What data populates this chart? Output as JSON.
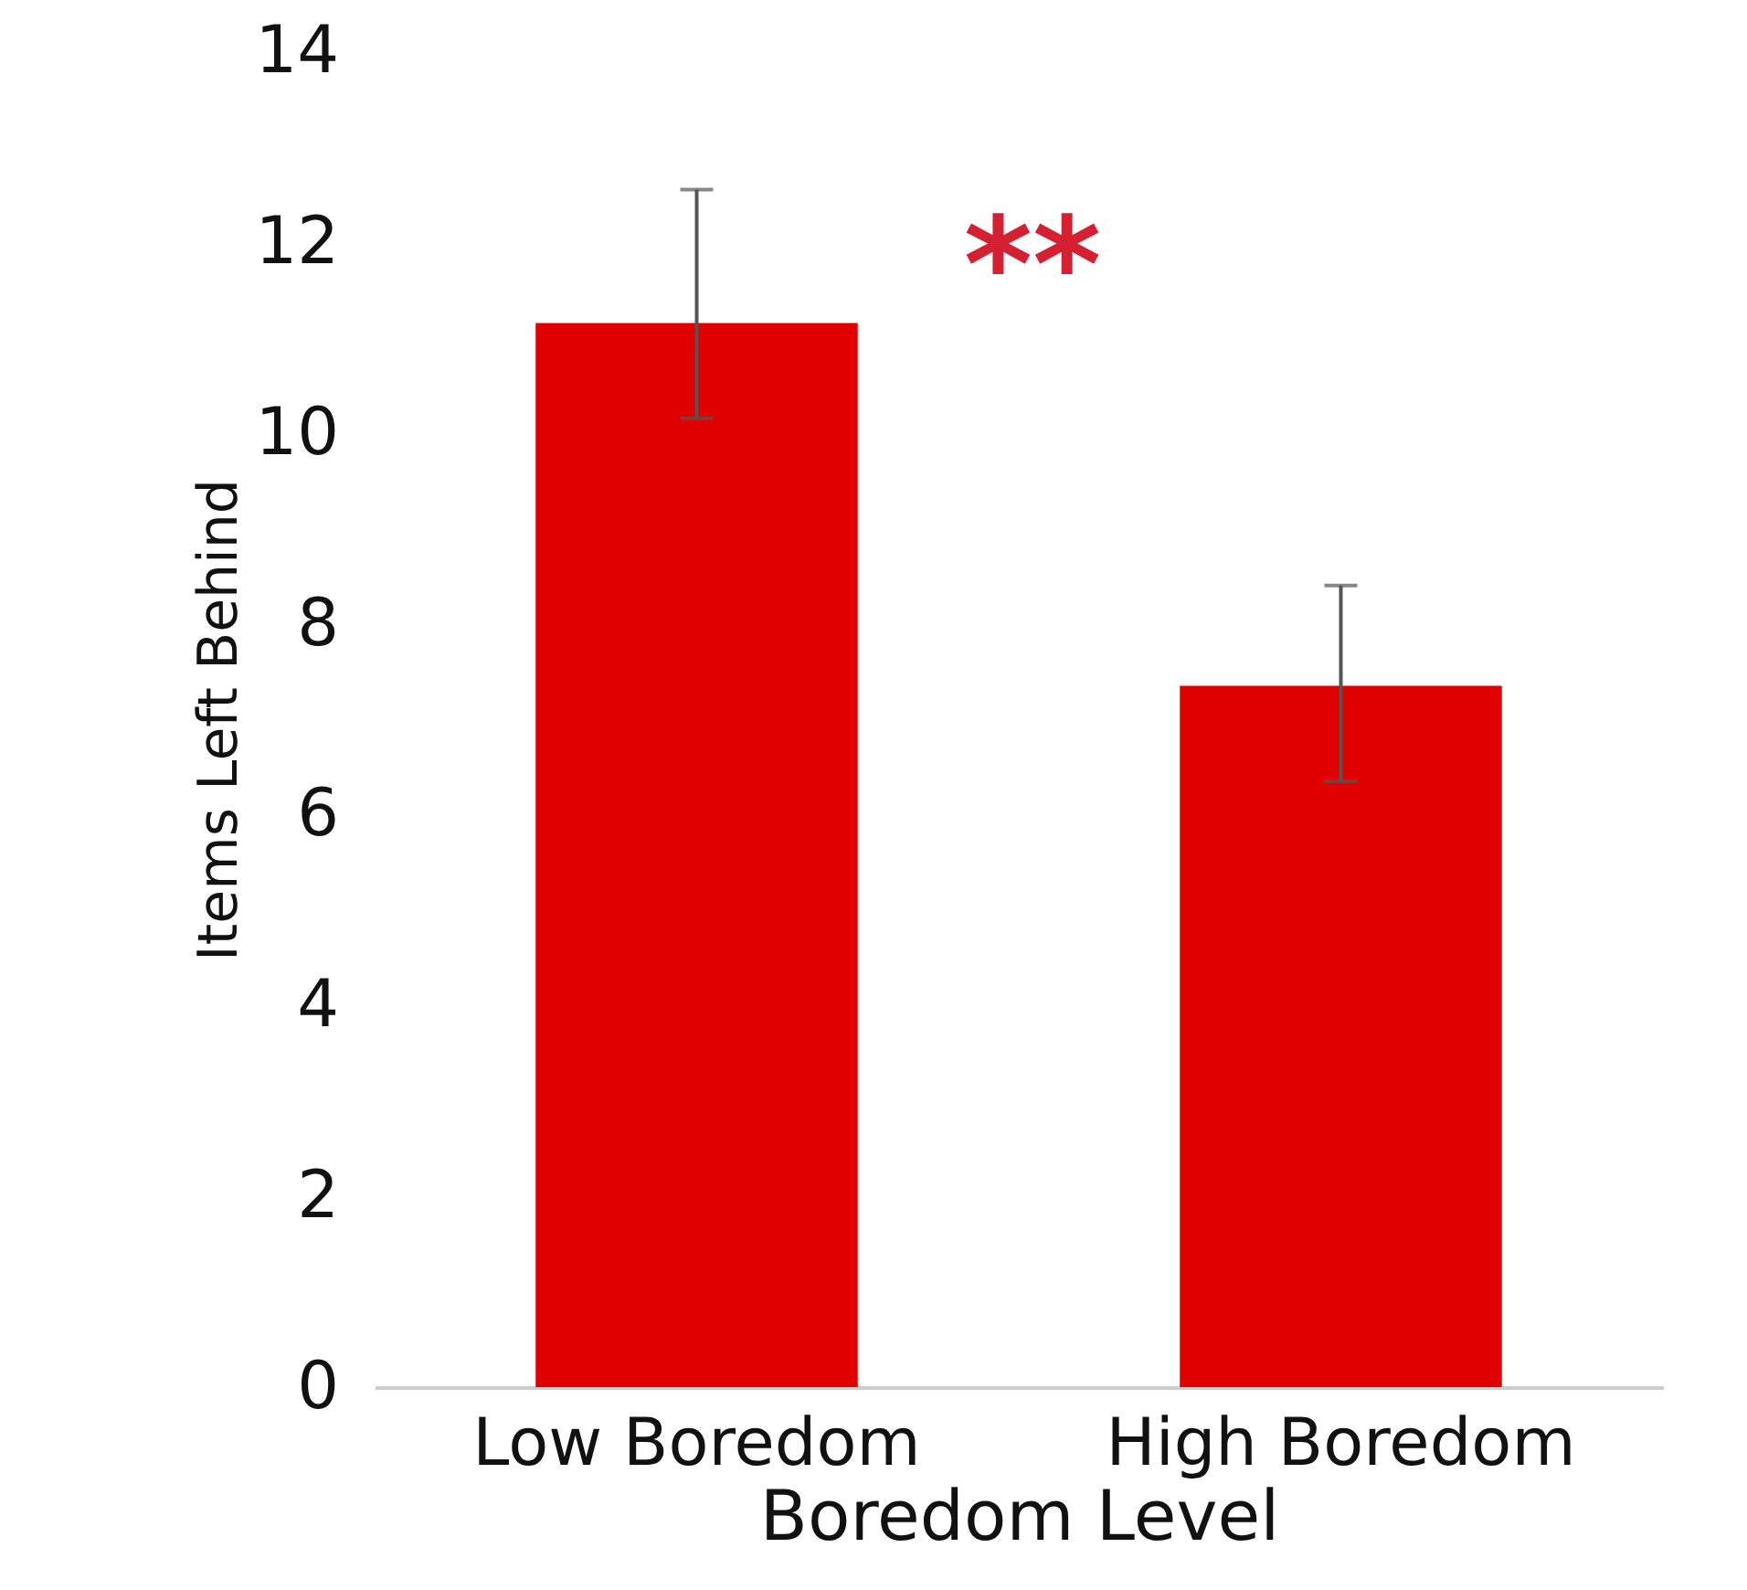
{
  "chart_data": {
    "type": "bar",
    "xlabel": "Boredom Level",
    "ylabel": "Items Left Behind",
    "categories": [
      "Low Boredom",
      "High Boredom"
    ],
    "values": [
      11.15,
      7.35
    ],
    "errors": [
      [
        10.15,
        12.55
      ],
      [
        6.35,
        8.4
      ]
    ],
    "color": "#e00000",
    "ylim": [
      0,
      14
    ],
    "yticks": [
      0,
      2,
      4,
      6,
      8,
      10,
      12,
      14
    ],
    "grid": false,
    "annotations": [
      "**"
    ]
  }
}
